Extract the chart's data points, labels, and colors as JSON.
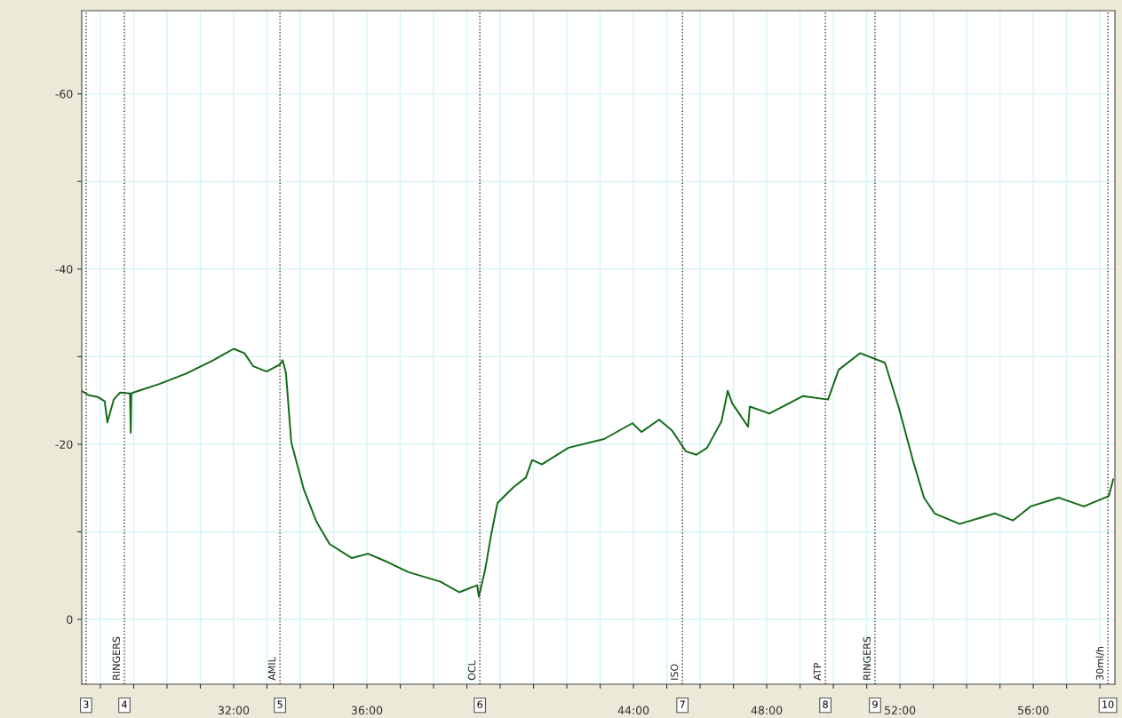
{
  "chart_data": {
    "type": "line",
    "x": [
      27.44,
      27.65,
      27.92,
      28.13,
      28.21,
      28.4,
      28.59,
      28.89,
      28.91,
      28.93,
      28.99,
      29.79,
      30.59,
      31.39,
      32.0,
      32.32,
      32.59,
      32.99,
      33.39,
      33.47,
      33.57,
      33.73,
      34.11,
      34.48,
      34.88,
      35.55,
      36.03,
      36.59,
      37.25,
      38.21,
      38.77,
      39.31,
      39.36,
      39.55,
      39.73,
      39.92,
      40.4,
      40.77,
      40.96,
      41.25,
      42.05,
      43.12,
      43.97,
      44.24,
      44.77,
      45.15,
      45.57,
      45.89,
      46.21,
      46.64,
      46.83,
      46.96,
      47.44,
      47.49,
      48.08,
      49.09,
      49.84,
      50.16,
      50.8,
      51.55,
      51.97,
      52.4,
      52.72,
      53.04,
      53.79,
      54.85,
      55.39,
      55.92,
      56.77,
      57.52,
      58.27,
      58.4
    ],
    "series": [
      {
        "color": "#0f6a14",
        "values": [
          -26.1,
          -25.6,
          -25.4,
          -24.9,
          -22.5,
          -25.1,
          -25.9,
          -25.8,
          -21.3,
          -25.8,
          -25.9,
          -26.9,
          -28.1,
          -29.6,
          -30.9,
          -30.4,
          -28.9,
          -28.3,
          -29.1,
          -29.6,
          -28.1,
          -20.2,
          -14.8,
          -11.2,
          -8.6,
          -7.0,
          -7.5,
          -6.6,
          -5.4,
          -4.3,
          -3.1,
          -3.9,
          -2.6,
          -5.7,
          -9.7,
          -13.3,
          -15.1,
          -16.2,
          -18.2,
          -17.7,
          -19.6,
          -20.6,
          -22.4,
          -21.4,
          -22.8,
          -21.6,
          -19.2,
          -18.8,
          -19.6,
          -22.6,
          -26.1,
          -24.7,
          -22.0,
          -24.3,
          -23.5,
          -25.5,
          -25.1,
          -28.5,
          -30.4,
          -29.3,
          -24.1,
          -18.0,
          -13.9,
          -12.1,
          -10.9,
          -12.1,
          -11.3,
          -12.9,
          -13.9,
          -12.9,
          -14.1,
          -16.0
        ]
      }
    ],
    "xlim": [
      27.44,
      58.45
    ],
    "xticks": [
      {
        "value": 28,
        "label": null
      },
      {
        "value": 29,
        "label": null
      },
      {
        "value": 30,
        "label": null
      },
      {
        "value": 31,
        "label": null
      },
      {
        "value": 32,
        "label": "32:00"
      },
      {
        "value": 33,
        "label": null
      },
      {
        "value": 34,
        "label": null
      },
      {
        "value": 35,
        "label": null
      },
      {
        "value": 36,
        "label": "36:00"
      },
      {
        "value": 37,
        "label": null
      },
      {
        "value": 38,
        "label": null
      },
      {
        "value": 39,
        "label": null
      },
      {
        "value": 40,
        "label": null
      },
      {
        "value": 41,
        "label": null
      },
      {
        "value": 42,
        "label": null
      },
      {
        "value": 43,
        "label": null
      },
      {
        "value": 44,
        "label": "44:00"
      },
      {
        "value": 45,
        "label": null
      },
      {
        "value": 46,
        "label": null
      },
      {
        "value": 47,
        "label": null
      },
      {
        "value": 48,
        "label": "48:00"
      },
      {
        "value": 49,
        "label": null
      },
      {
        "value": 50,
        "label": null
      },
      {
        "value": 51,
        "label": null
      },
      {
        "value": 52,
        "label": "52:00"
      },
      {
        "value": 53,
        "label": null
      },
      {
        "value": 54,
        "label": null
      },
      {
        "value": 55,
        "label": null
      },
      {
        "value": 56,
        "label": "56:00"
      },
      {
        "value": 57,
        "label": null
      },
      {
        "value": 58,
        "label": null
      }
    ],
    "ylim": [
      7.4,
      -69.5
    ],
    "yticks": [
      0,
      {
        "value": -10,
        "label": null
      },
      -20,
      {
        "value": -30,
        "label": null
      },
      -40,
      {
        "value": -50,
        "label": null
      },
      -60
    ],
    "grid": true,
    "ref_lines": [
      {
        "axis": "x",
        "value": 27.57,
        "label": null,
        "color": "#333333",
        "line_style": "dotted"
      },
      {
        "axis": "x",
        "value": 28.72,
        "label": "RINGERS",
        "color": "#333333",
        "line_style": "dotted"
      },
      {
        "axis": "x",
        "value": 33.39,
        "label": "AMIL",
        "color": "#333333",
        "line_style": "dotted"
      },
      {
        "axis": "x",
        "value": 39.39,
        "label": "OCL",
        "color": "#333333",
        "line_style": "dotted"
      },
      {
        "axis": "x",
        "value": 45.47,
        "label": "ISO",
        "color": "#333333",
        "line_style": "dotted"
      },
      {
        "axis": "x",
        "value": 49.76,
        "label": "ATP",
        "color": "#333333",
        "line_style": "dotted"
      },
      {
        "axis": "x",
        "value": 51.25,
        "label": "RINGERS",
        "color": "#333333",
        "line_style": "dotted"
      },
      {
        "axis": "x",
        "value": 58.24,
        "label": "30ml/h",
        "color": "#333333",
        "line_style": "dotted"
      }
    ],
    "annotations": [
      "3",
      "4",
      "5",
      "6",
      "7",
      "8",
      "9",
      "10"
    ]
  }
}
